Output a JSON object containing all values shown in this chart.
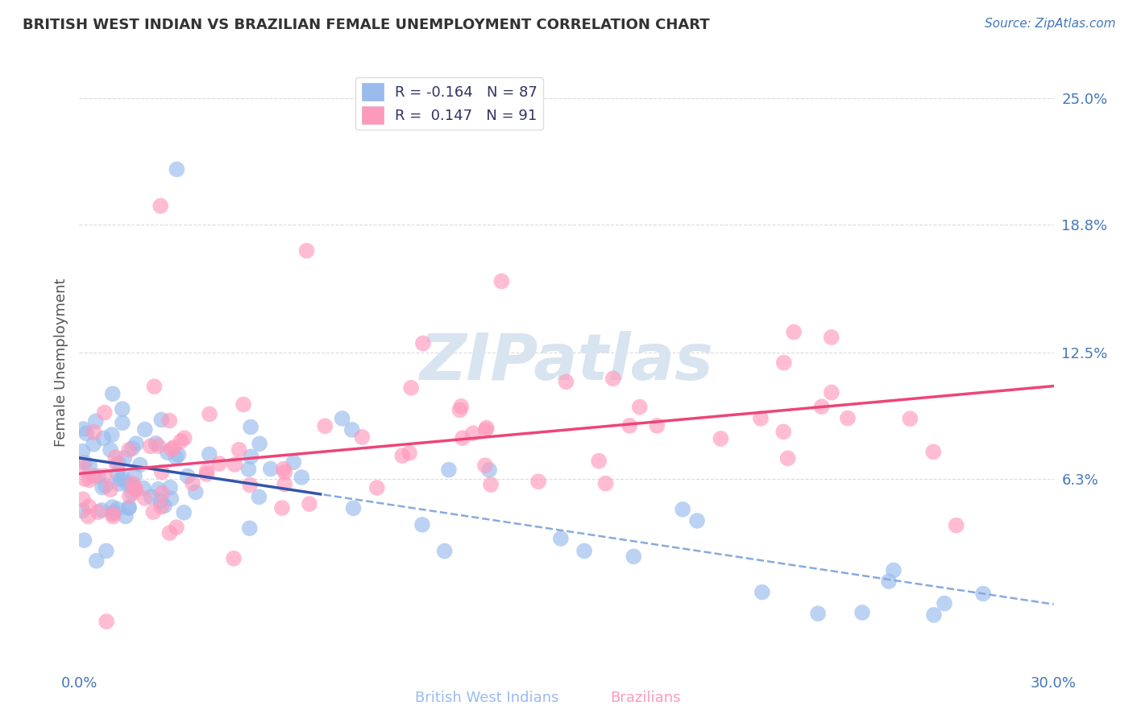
{
  "title": "BRITISH WEST INDIAN VS BRAZILIAN FEMALE UNEMPLOYMENT CORRELATION CHART",
  "source": "Source: ZipAtlas.com",
  "ylabel": "Female Unemployment",
  "xlim": [
    0.0,
    0.3
  ],
  "ylim": [
    -0.03,
    0.27
  ],
  "ytick_values": [
    0.063,
    0.125,
    0.188,
    0.25
  ],
  "ytick_labels": [
    "6.3%",
    "12.5%",
    "18.8%",
    "25.0%"
  ],
  "grid_color": "#cccccc",
  "background_color": "#ffffff",
  "bwi_color": "#99bbee",
  "bra_color": "#ff99bb",
  "bwi_line_color": "#3355aa",
  "bra_line_color": "#ee4477",
  "watermark_color": "#d8e4f0",
  "watermark_text": "ZIPatlas",
  "legend_bwi": "R = -0.164   N = 87",
  "legend_bra": "R =  0.147   N = 91",
  "series_bwi_name": "British West Indians",
  "series_bra_name": "Brazilians",
  "title_color": "#333333",
  "source_color": "#4477bb",
  "axis_color": "#4477bb",
  "ylabel_color": "#555555"
}
